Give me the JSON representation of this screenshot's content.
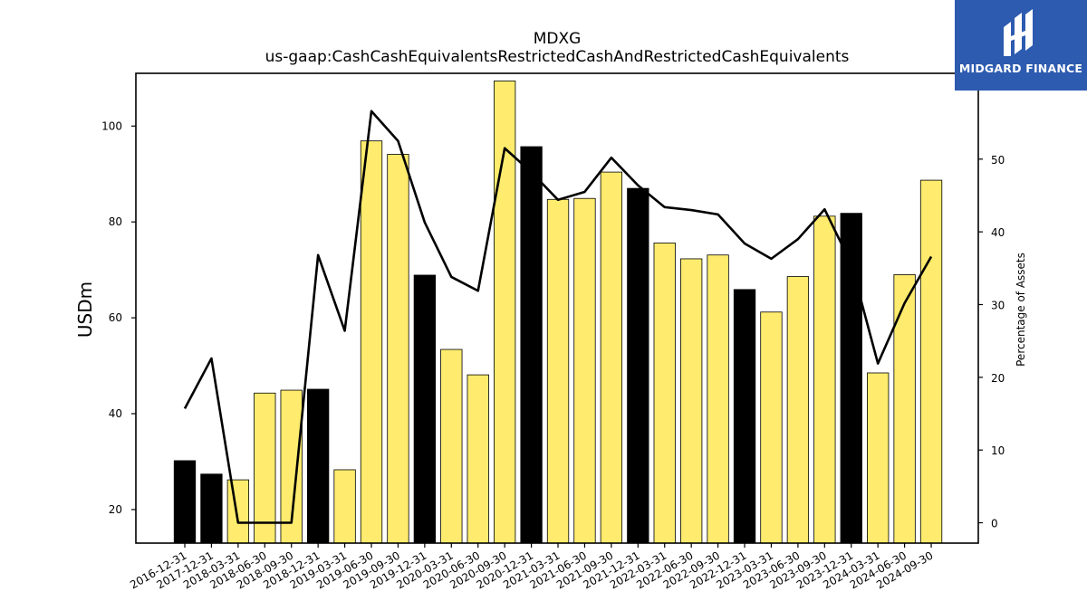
{
  "chart_data": {
    "type": "bar",
    "title": "MDXG",
    "subtitle": "us-gaap:CashCashEquivalentsRestrictedCashAndRestrictedCashEquivalents",
    "ylabel": "USDm",
    "y2label": "Percentage of Assets",
    "ylim": [
      13,
      111
    ],
    "y2lim": [
      -2.8,
      61.8
    ],
    "yticks": [
      20,
      40,
      60,
      80,
      100
    ],
    "y2ticks": [
      0,
      10,
      20,
      30,
      40,
      50
    ],
    "categories": [
      "2016-12-31",
      "2017-12-31",
      "2018-03-31",
      "2018-06-30",
      "2018-09-30",
      "2018-12-31",
      "2019-03-31",
      "2019-06-30",
      "2019-09-30",
      "2019-12-31",
      "2020-03-31",
      "2020-06-30",
      "2020-09-30",
      "2020-12-31",
      "2021-03-31",
      "2021-06-30",
      "2021-09-30",
      "2021-12-31",
      "2022-03-31",
      "2022-06-30",
      "2022-09-30",
      "2022-12-31",
      "2023-03-31",
      "2023-06-30",
      "2023-09-30",
      "2023-12-31",
      "2024-03-31",
      "2024-06-30",
      "2024-09-30"
    ],
    "series": [
      {
        "kind": "bar",
        "values": [
          30.2,
          27.4,
          26.2,
          44.3,
          44.9,
          45.1,
          28.3,
          96.9,
          94.1,
          68.9,
          53.4,
          48.1,
          109.4,
          95.7,
          84.7,
          84.9,
          90.4,
          87.0,
          75.6,
          72.3,
          73.1,
          65.9,
          61.2,
          68.6,
          81.2,
          81.8,
          48.5,
          69.0,
          88.7
        ],
        "highlight": [
          "year-end",
          "year-end",
          "quarter",
          "quarter",
          "quarter",
          "year-end",
          "quarter",
          "quarter",
          "quarter",
          "year-end",
          "quarter",
          "quarter",
          "quarter",
          "year-end",
          "quarter",
          "quarter",
          "quarter",
          "year-end",
          "quarter",
          "quarter",
          "quarter",
          "year-end",
          "quarter",
          "quarter",
          "quarter",
          "year-end",
          "quarter",
          "quarter",
          "quarter"
        ]
      },
      {
        "kind": "line",
        "axis": "right",
        "values": [
          15.7,
          22.6,
          0.0,
          0.0,
          0.0,
          36.8,
          26.4,
          56.6,
          52.5,
          41.3,
          33.8,
          31.9,
          51.5,
          48.2,
          44.4,
          45.5,
          50.2,
          46.4,
          43.4,
          43.0,
          42.4,
          38.4,
          36.3,
          39.0,
          43.1,
          35.6,
          21.9,
          30.2,
          36.6
        ]
      }
    ],
    "colors": {
      "year_end_bar": "#000000",
      "quarter_bar": "#ffec6e",
      "line": "#000000",
      "bar_edge": "#000000"
    },
    "grid": false,
    "legend": "none"
  },
  "logo": {
    "text": "MIDGARD FINANCE",
    "background": "#2d5bb0"
  }
}
